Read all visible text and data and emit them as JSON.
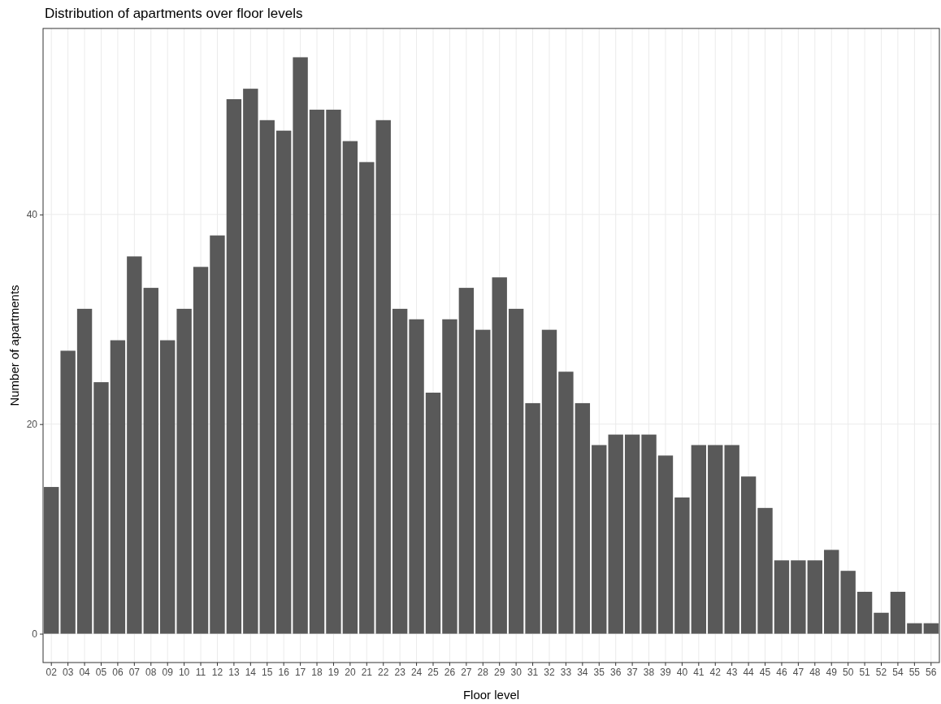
{
  "chart_data": {
    "type": "bar",
    "title": "Distribution of apartments over floor levels",
    "xlabel": "Floor level",
    "ylabel": "Number of apartments",
    "categories": [
      "02",
      "03",
      "04",
      "05",
      "06",
      "07",
      "08",
      "09",
      "10",
      "11",
      "12",
      "13",
      "14",
      "15",
      "16",
      "17",
      "18",
      "19",
      "20",
      "21",
      "22",
      "23",
      "24",
      "25",
      "26",
      "27",
      "28",
      "29",
      "30",
      "31",
      "32",
      "33",
      "34",
      "35",
      "36",
      "37",
      "38",
      "39",
      "40",
      "41",
      "42",
      "43",
      "44",
      "45",
      "46",
      "47",
      "48",
      "49",
      "50",
      "51",
      "52",
      "54",
      "55",
      "56"
    ],
    "values": [
      14,
      27,
      31,
      24,
      28,
      36,
      33,
      28,
      31,
      35,
      38,
      51,
      52,
      49,
      48,
      55,
      50,
      50,
      47,
      45,
      49,
      31,
      30,
      23,
      30,
      33,
      29,
      34,
      31,
      22,
      29,
      25,
      22,
      18,
      19,
      19,
      19,
      17,
      13,
      18,
      18,
      18,
      15,
      12,
      7,
      7,
      7,
      8,
      6,
      4,
      2,
      4,
      1,
      1
    ],
    "color": "#595959",
    "ylim": [
      -2.75,
      57.75
    ],
    "yticks": [
      0,
      20,
      40
    ],
    "grid": true
  }
}
